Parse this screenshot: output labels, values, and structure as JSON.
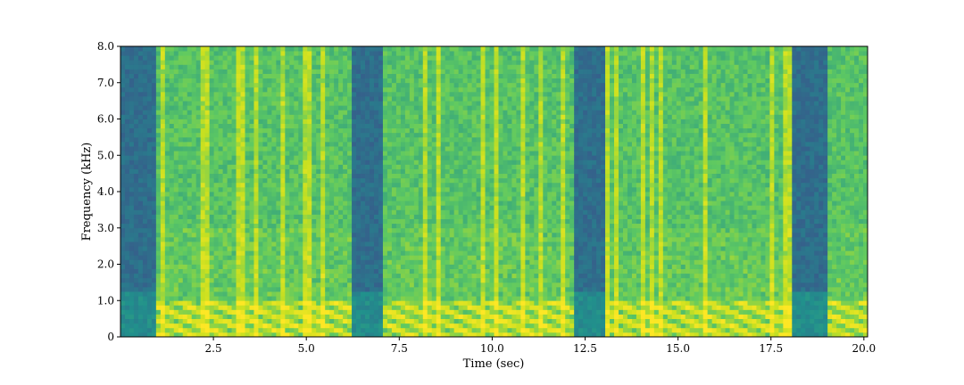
{
  "chart_data": {
    "type": "heatmap",
    "kind": "spectrogram",
    "xlabel": "Time (sec)",
    "ylabel": "Frequency (kHz)",
    "xlim": [
      0.0,
      20.1
    ],
    "ylim": [
      0.0,
      8.0
    ],
    "x_ticks": [
      {
        "value": 2.5,
        "label": "2.5"
      },
      {
        "value": 5.0,
        "label": "5.0"
      },
      {
        "value": 7.5,
        "label": "7.5"
      },
      {
        "value": 10.0,
        "label": "10.0"
      },
      {
        "value": 12.5,
        "label": "12.5"
      },
      {
        "value": 15.0,
        "label": "15.0"
      },
      {
        "value": 17.5,
        "label": "17.5"
      },
      {
        "value": 20.0,
        "label": "20.0"
      }
    ],
    "y_ticks": [
      {
        "value": 0.0,
        "label": "0"
      },
      {
        "value": 1.0,
        "label": "1.0"
      },
      {
        "value": 2.0,
        "label": "2.0"
      },
      {
        "value": 3.0,
        "label": "3.0"
      },
      {
        "value": 4.0,
        "label": "4.0"
      },
      {
        "value": 5.0,
        "label": "5.0"
      },
      {
        "value": 6.0,
        "label": "6.0"
      },
      {
        "value": 7.0,
        "label": "7.0"
      },
      {
        "value": 8.0,
        "label": "8.0"
      }
    ],
    "colormap": [
      "#3b528b",
      "#21918c",
      "#5ec962",
      "#c8e020",
      "#fde725"
    ],
    "grid": false,
    "legend": "none",
    "time_segments": [
      {
        "start": 0.0,
        "end": 1.0,
        "level": "low"
      },
      {
        "start": 1.0,
        "end": 6.2,
        "level": "high"
      },
      {
        "start": 6.2,
        "end": 7.0,
        "level": "low"
      },
      {
        "start": 7.0,
        "end": 12.2,
        "level": "high"
      },
      {
        "start": 12.2,
        "end": 13.0,
        "level": "low"
      },
      {
        "start": 13.0,
        "end": 18.1,
        "level": "high"
      },
      {
        "start": 18.1,
        "end": 19.0,
        "level": "low"
      },
      {
        "start": 19.0,
        "end": 20.1,
        "level": "high"
      }
    ]
  }
}
